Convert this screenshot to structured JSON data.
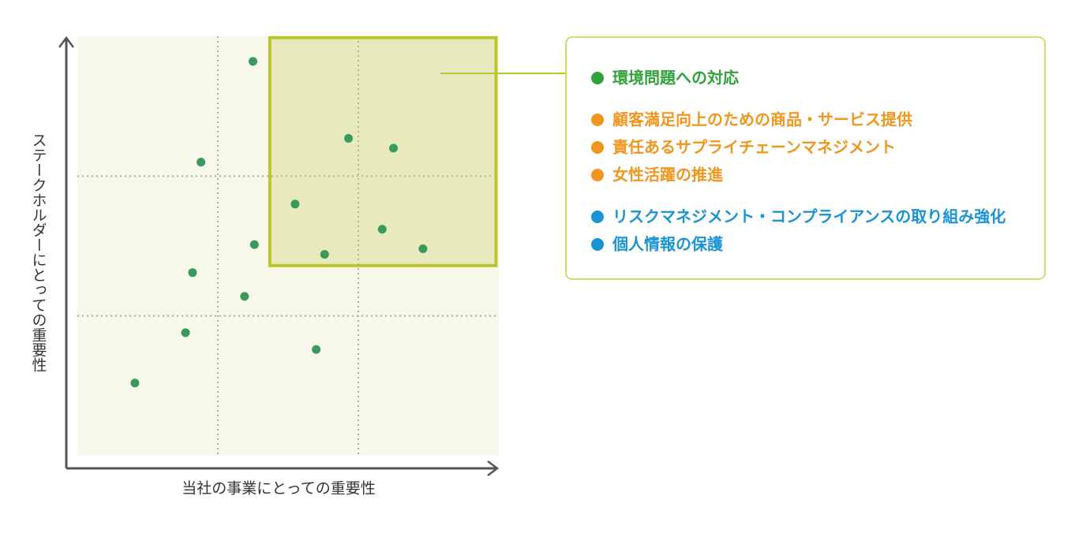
{
  "chart_data": {
    "type": "scatter",
    "x_label": "当社の事業にとっての重要性",
    "y_label": "ステークホルダーにとっての重要性",
    "x": [
      1.25,
      0.88,
      1.93,
      2.25,
      1.55,
      2.17,
      2.46,
      1.76,
      1.26,
      0.82,
      1.19,
      0.77,
      1.7,
      0.41
    ],
    "y": [
      2.82,
      2.1,
      2.27,
      2.2,
      1.8,
      1.62,
      1.48,
      1.44,
      1.51,
      1.31,
      1.14,
      0.88,
      0.76,
      0.52
    ],
    "color": "#3a9a5c",
    "xlim": [
      0,
      3
    ],
    "ylim": [
      0,
      3
    ],
    "grid_x": [
      1,
      2
    ],
    "grid_y": [
      1,
      2
    ],
    "highlight": {
      "x": [
        1.37,
        2.98
      ],
      "y": [
        1.36,
        2.99
      ]
    },
    "legend_groups": [
      {
        "color": "#2fa23a",
        "items": [
          "環境問題への対応"
        ]
      },
      {
        "color": "#f0961e",
        "items": [
          "顧客満足向上のための商品・サービス提供",
          "責任あるサプライチェーンマネジメント",
          "女性活躍の推進"
        ]
      },
      {
        "color": "#1a93d4",
        "items": [
          "リスクマネジメント・コンプライアンスの取り組み強化",
          "個人情報の保護"
        ]
      }
    ]
  }
}
